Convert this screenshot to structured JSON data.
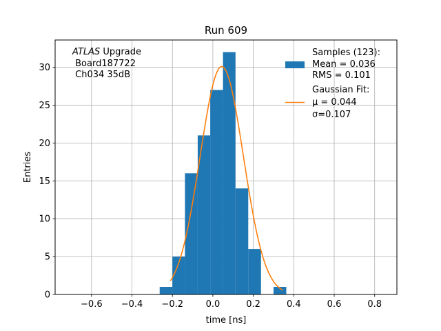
{
  "chart_data": {
    "type": "bar",
    "title": "Run 609",
    "xlabel": "time [ns]",
    "ylabel": "Entries",
    "xlim": [
      -0.78,
      0.91
    ],
    "ylim": [
      0,
      33.6
    ],
    "xticks": [
      -0.6,
      -0.4,
      -0.2,
      0.0,
      0.2,
      0.4,
      0.6,
      0.8
    ],
    "xtick_labels": [
      "−0.6",
      "−0.4",
      "−0.2",
      "0.0",
      "0.2",
      "0.4",
      "0.6",
      "0.8"
    ],
    "yticks": [
      0,
      5,
      10,
      15,
      20,
      25,
      30
    ],
    "ytick_labels": [
      "0",
      "5",
      "10",
      "15",
      "20",
      "25",
      "30"
    ],
    "grid": true,
    "histogram": {
      "bin_edges": [
        -0.263,
        -0.2,
        -0.138,
        -0.075,
        -0.013,
        0.05,
        0.112,
        0.175,
        0.238,
        0.3,
        0.363,
        0.425
      ],
      "counts": [
        1,
        5,
        16,
        21,
        27,
        32,
        14,
        6,
        0,
        1,
        0
      ],
      "color": "#1f77b4"
    },
    "fit": {
      "type": "gaussian",
      "mu": 0.044,
      "sigma": 0.107,
      "amplitude": 30.1,
      "x_range": [
        -0.21,
        0.345
      ],
      "color": "#ff7f0e"
    },
    "annotation": {
      "italic": "ATLAS",
      "rest": " Upgrade",
      "line2": " Board187722",
      "line3": " Ch034 35dB"
    },
    "legend": {
      "location": "top-right",
      "entries": [
        {
          "label_lines": [
            "Samples (123):",
            " Mean = 0.036",
            " RMS = 0.101"
          ],
          "color": "#1f77b4",
          "kind": "patch"
        },
        {
          "label_lines": [
            "Gaussian Fit:",
            " μ = 0.044",
            " σ=0.107"
          ],
          "color": "#ff7f0e",
          "kind": "line"
        }
      ]
    }
  }
}
